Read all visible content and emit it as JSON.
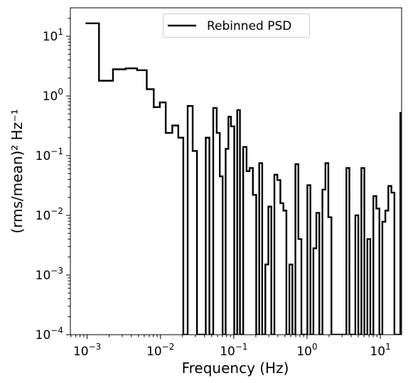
{
  "chart_data": {
    "type": "line",
    "style": "step",
    "xscale": "log",
    "yscale": "log",
    "xlabel": "Frequency (Hz)",
    "ylabel": "(rms/mean)² Hz⁻¹",
    "xlim": [
      0.00059,
      19.5
    ],
    "ylim": [
      0.0001,
      30
    ],
    "grid": false,
    "legend_position": "top-center",
    "x_ticks": [
      {
        "value": 0.001,
        "base": "10",
        "exp": "−3"
      },
      {
        "value": 0.01,
        "base": "10",
        "exp": "−2"
      },
      {
        "value": 0.1,
        "base": "10",
        "exp": "−1"
      },
      {
        "value": 1,
        "base": "10",
        "exp": "0"
      },
      {
        "value": 10,
        "base": "10",
        "exp": "1"
      }
    ],
    "y_ticks": [
      {
        "value": 0.0001,
        "base": "10",
        "exp": "−4"
      },
      {
        "value": 0.001,
        "base": "10",
        "exp": "−3"
      },
      {
        "value": 0.01,
        "base": "10",
        "exp": "−2"
      },
      {
        "value": 0.1,
        "base": "10",
        "exp": "−1"
      },
      {
        "value": 1,
        "base": "10",
        "exp": "0"
      },
      {
        "value": 10,
        "base": "10",
        "exp": "1"
      }
    ],
    "series": [
      {
        "name": "Rebinned PSD",
        "color": "#000000",
        "bin_edges": [
          0.00095,
          0.00145,
          0.00225,
          0.00335,
          0.0048,
          0.0065,
          0.0081,
          0.0098,
          0.0118,
          0.0145,
          0.0175,
          0.0205,
          0.0235,
          0.0275,
          0.0315,
          0.0365,
          0.0415,
          0.0465,
          0.0525,
          0.0585,
          0.0645,
          0.0705,
          0.0775,
          0.0845,
          0.0915,
          0.1015,
          0.1115,
          0.1215,
          0.1345,
          0.1495,
          0.1645,
          0.1825,
          0.2025,
          0.2225,
          0.2445,
          0.2695,
          0.2965,
          0.3255,
          0.3585,
          0.3935,
          0.4325,
          0.4755,
          0.5225,
          0.5745,
          0.6305,
          0.6935,
          0.7615,
          0.8375,
          0.9205,
          1.0105,
          1.1105,
          1.2205,
          1.3405,
          1.4705,
          1.6205,
          1.7805,
          1.9505,
          2.1505,
          2.3605,
          2.5905,
          2.8505,
          3.1305,
          3.4405,
          3.7805,
          4.1505,
          4.5605,
          5.0105,
          5.5105,
          6.0505,
          6.6505,
          7.3005,
          8.0305,
          8.8205,
          9.7005,
          10.6505,
          11.7005,
          12.8505,
          14.1505,
          15.5505,
          17.0505,
          18.7505,
          19.5
        ],
        "values": [
          16.5,
          1.8,
          2.8,
          2.9,
          2.7,
          1.3,
          0.65,
          0.78,
          0.24,
          0.32,
          0.2,
          0.0001,
          0.68,
          0.12,
          0.0001,
          0.0001,
          0.2,
          0.0001,
          0.63,
          0.24,
          0.045,
          0.0001,
          0.13,
          0.45,
          0.31,
          0.0001,
          0.58,
          0.0001,
          0.14,
          0.055,
          0.062,
          0.022,
          0.0001,
          0.075,
          0.0001,
          0.0015,
          0.014,
          0.0001,
          0.048,
          0.039,
          0.016,
          0.012,
          0.0001,
          0.0015,
          0.0001,
          0.072,
          0.004,
          0.0001,
          0.0001,
          0.032,
          0.0001,
          0.0028,
          0.011,
          0.0001,
          0.027,
          0.075,
          0.0093,
          0.0001,
          0.0001,
          0.0001,
          0.0001,
          0.0001,
          0.062,
          0.0001,
          0.0001,
          0.01,
          0.0001,
          0.062,
          0.0001,
          0.004,
          0.0001,
          0.021,
          0.013,
          0.0001,
          0.0078,
          0.012,
          0.031,
          0.024,
          0.0001,
          0.0001,
          0.52
        ]
      }
    ]
  }
}
